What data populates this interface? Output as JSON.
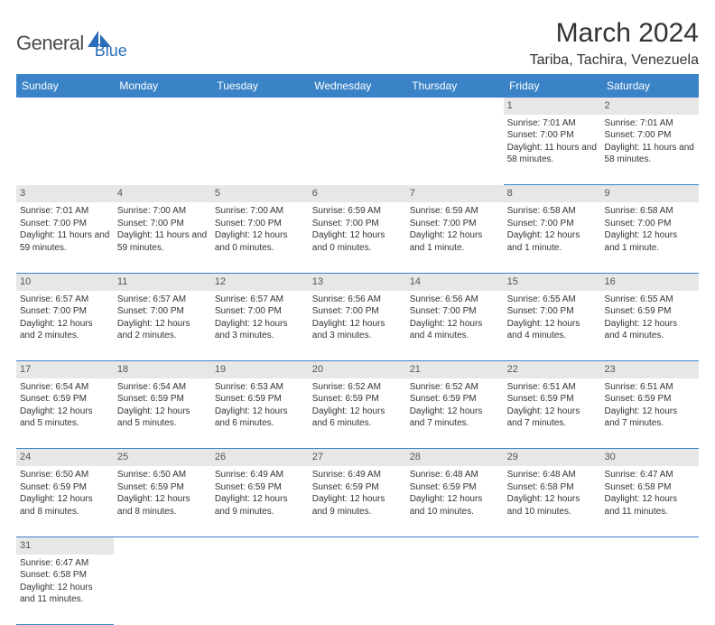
{
  "logo": {
    "general": "General",
    "blue": "Blue"
  },
  "title": "March 2024",
  "location": "Tariba, Tachira, Venezuela",
  "colors": {
    "header_bg": "#3a83c7",
    "header_text": "#ffffff",
    "daynum_bg": "#e7e7e7",
    "border": "#3a83c7",
    "body_text": "#333333",
    "logo_gray": "#4a4a4a",
    "logo_blue": "#2a6db8"
  },
  "weekdays": [
    "Sunday",
    "Monday",
    "Tuesday",
    "Wednesday",
    "Thursday",
    "Friday",
    "Saturday"
  ],
  "weeks": [
    [
      null,
      null,
      null,
      null,
      null,
      {
        "n": "1",
        "sr": "Sunrise: 7:01 AM",
        "ss": "Sunset: 7:00 PM",
        "dl": "Daylight: 11 hours and 58 minutes."
      },
      {
        "n": "2",
        "sr": "Sunrise: 7:01 AM",
        "ss": "Sunset: 7:00 PM",
        "dl": "Daylight: 11 hours and 58 minutes."
      }
    ],
    [
      {
        "n": "3",
        "sr": "Sunrise: 7:01 AM",
        "ss": "Sunset: 7:00 PM",
        "dl": "Daylight: 11 hours and 59 minutes."
      },
      {
        "n": "4",
        "sr": "Sunrise: 7:00 AM",
        "ss": "Sunset: 7:00 PM",
        "dl": "Daylight: 11 hours and 59 minutes."
      },
      {
        "n": "5",
        "sr": "Sunrise: 7:00 AM",
        "ss": "Sunset: 7:00 PM",
        "dl": "Daylight: 12 hours and 0 minutes."
      },
      {
        "n": "6",
        "sr": "Sunrise: 6:59 AM",
        "ss": "Sunset: 7:00 PM",
        "dl": "Daylight: 12 hours and 0 minutes."
      },
      {
        "n": "7",
        "sr": "Sunrise: 6:59 AM",
        "ss": "Sunset: 7:00 PM",
        "dl": "Daylight: 12 hours and 1 minute."
      },
      {
        "n": "8",
        "sr": "Sunrise: 6:58 AM",
        "ss": "Sunset: 7:00 PM",
        "dl": "Daylight: 12 hours and 1 minute."
      },
      {
        "n": "9",
        "sr": "Sunrise: 6:58 AM",
        "ss": "Sunset: 7:00 PM",
        "dl": "Daylight: 12 hours and 1 minute."
      }
    ],
    [
      {
        "n": "10",
        "sr": "Sunrise: 6:57 AM",
        "ss": "Sunset: 7:00 PM",
        "dl": "Daylight: 12 hours and 2 minutes."
      },
      {
        "n": "11",
        "sr": "Sunrise: 6:57 AM",
        "ss": "Sunset: 7:00 PM",
        "dl": "Daylight: 12 hours and 2 minutes."
      },
      {
        "n": "12",
        "sr": "Sunrise: 6:57 AM",
        "ss": "Sunset: 7:00 PM",
        "dl": "Daylight: 12 hours and 3 minutes."
      },
      {
        "n": "13",
        "sr": "Sunrise: 6:56 AM",
        "ss": "Sunset: 7:00 PM",
        "dl": "Daylight: 12 hours and 3 minutes."
      },
      {
        "n": "14",
        "sr": "Sunrise: 6:56 AM",
        "ss": "Sunset: 7:00 PM",
        "dl": "Daylight: 12 hours and 4 minutes."
      },
      {
        "n": "15",
        "sr": "Sunrise: 6:55 AM",
        "ss": "Sunset: 7:00 PM",
        "dl": "Daylight: 12 hours and 4 minutes."
      },
      {
        "n": "16",
        "sr": "Sunrise: 6:55 AM",
        "ss": "Sunset: 6:59 PM",
        "dl": "Daylight: 12 hours and 4 minutes."
      }
    ],
    [
      {
        "n": "17",
        "sr": "Sunrise: 6:54 AM",
        "ss": "Sunset: 6:59 PM",
        "dl": "Daylight: 12 hours and 5 minutes."
      },
      {
        "n": "18",
        "sr": "Sunrise: 6:54 AM",
        "ss": "Sunset: 6:59 PM",
        "dl": "Daylight: 12 hours and 5 minutes."
      },
      {
        "n": "19",
        "sr": "Sunrise: 6:53 AM",
        "ss": "Sunset: 6:59 PM",
        "dl": "Daylight: 12 hours and 6 minutes."
      },
      {
        "n": "20",
        "sr": "Sunrise: 6:52 AM",
        "ss": "Sunset: 6:59 PM",
        "dl": "Daylight: 12 hours and 6 minutes."
      },
      {
        "n": "21",
        "sr": "Sunrise: 6:52 AM",
        "ss": "Sunset: 6:59 PM",
        "dl": "Daylight: 12 hours and 7 minutes."
      },
      {
        "n": "22",
        "sr": "Sunrise: 6:51 AM",
        "ss": "Sunset: 6:59 PM",
        "dl": "Daylight: 12 hours and 7 minutes."
      },
      {
        "n": "23",
        "sr": "Sunrise: 6:51 AM",
        "ss": "Sunset: 6:59 PM",
        "dl": "Daylight: 12 hours and 7 minutes."
      }
    ],
    [
      {
        "n": "24",
        "sr": "Sunrise: 6:50 AM",
        "ss": "Sunset: 6:59 PM",
        "dl": "Daylight: 12 hours and 8 minutes."
      },
      {
        "n": "25",
        "sr": "Sunrise: 6:50 AM",
        "ss": "Sunset: 6:59 PM",
        "dl": "Daylight: 12 hours and 8 minutes."
      },
      {
        "n": "26",
        "sr": "Sunrise: 6:49 AM",
        "ss": "Sunset: 6:59 PM",
        "dl": "Daylight: 12 hours and 9 minutes."
      },
      {
        "n": "27",
        "sr": "Sunrise: 6:49 AM",
        "ss": "Sunset: 6:59 PM",
        "dl": "Daylight: 12 hours and 9 minutes."
      },
      {
        "n": "28",
        "sr": "Sunrise: 6:48 AM",
        "ss": "Sunset: 6:59 PM",
        "dl": "Daylight: 12 hours and 10 minutes."
      },
      {
        "n": "29",
        "sr": "Sunrise: 6:48 AM",
        "ss": "Sunset: 6:58 PM",
        "dl": "Daylight: 12 hours and 10 minutes."
      },
      {
        "n": "30",
        "sr": "Sunrise: 6:47 AM",
        "ss": "Sunset: 6:58 PM",
        "dl": "Daylight: 12 hours and 11 minutes."
      }
    ],
    [
      {
        "n": "31",
        "sr": "Sunrise: 6:47 AM",
        "ss": "Sunset: 6:58 PM",
        "dl": "Daylight: 12 hours and 11 minutes."
      },
      null,
      null,
      null,
      null,
      null,
      null
    ]
  ]
}
